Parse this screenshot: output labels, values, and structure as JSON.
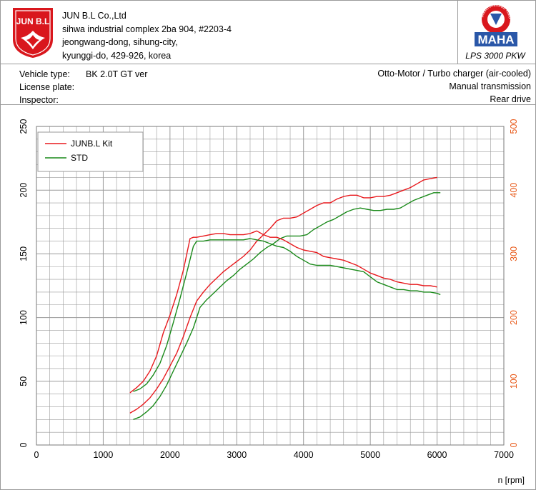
{
  "company": {
    "logo_text": "JUN B.L",
    "name": "JUN B.L Co.,Ltd",
    "address_lines": [
      "sihwa industrial complex 2ba 904, #2203-4",
      "jeongwang-dong, sihung-city,",
      "kyunggi-do, 429-926, korea"
    ]
  },
  "equipment": {
    "brand": "MAHA",
    "ring_text": "Maschinenbau Haldenwang",
    "model": "LPS 3000 PKW"
  },
  "vehicle": {
    "type_label": "Vehicle type:",
    "type_value": "BK 2.0T GT ver",
    "plate_label": "License plate:",
    "plate_value": "",
    "inspector_label": "Inspector:",
    "inspector_value": "",
    "engine": "Otto-Motor / Turbo charger (air-cooled)",
    "transmission": "Manual transmission",
    "drive": "Rear drive"
  },
  "colors": {
    "kit": "#e8191d",
    "std": "#1a8a1a",
    "right_axis": "#e85a1a",
    "grid": "#9a9a9a",
    "logo_red": "#d9171d"
  },
  "chart_data": {
    "type": "line",
    "xlabel": "n [rpm]",
    "xlim": [
      0,
      7000
    ],
    "xticks": [
      0,
      1000,
      2000,
      3000,
      4000,
      5000,
      6000,
      7000
    ],
    "ylim_left": [
      0,
      250
    ],
    "yticks_left": [
      0,
      50,
      100,
      150,
      200,
      250
    ],
    "ylim_right": [
      0,
      500
    ],
    "yticks_right": [
      0,
      100,
      200,
      300,
      400,
      500
    ],
    "grid": true,
    "legend_position": "top-left",
    "legend": [
      "JUNB.L Kit",
      "STD"
    ],
    "series": [
      {
        "name": "JUNB.L Kit",
        "kind": "power",
        "axis": "left",
        "x": [
          1400,
          1500,
          1600,
          1700,
          1800,
          1900,
          2000,
          2100,
          2200,
          2300,
          2400,
          2500,
          2600,
          2700,
          2800,
          2900,
          3000,
          3100,
          3200,
          3300,
          3400,
          3500,
          3600,
          3700,
          3800,
          3900,
          4000,
          4100,
          4200,
          4300,
          4400,
          4500,
          4600,
          4700,
          4800,
          4900,
          5000,
          5100,
          5200,
          5300,
          5400,
          5500,
          5600,
          5700,
          5800,
          5900,
          6000
        ],
        "values": [
          25,
          28,
          32,
          37,
          44,
          52,
          62,
          72,
          85,
          100,
          113,
          120,
          126,
          131,
          136,
          140,
          144,
          148,
          153,
          160,
          165,
          170,
          176,
          178,
          178,
          179,
          182,
          185,
          188,
          190,
          190,
          193,
          195,
          196,
          196,
          194,
          194,
          195,
          195,
          196,
          198,
          200,
          202,
          205,
          208,
          209,
          210
        ]
      },
      {
        "name": "STD",
        "kind": "power",
        "axis": "left",
        "x": [
          1450,
          1550,
          1650,
          1750,
          1850,
          1950,
          2050,
          2150,
          2250,
          2350,
          2450,
          2550,
          2650,
          2750,
          2850,
          2950,
          3050,
          3150,
          3250,
          3350,
          3450,
          3550,
          3650,
          3750,
          3850,
          3950,
          4050,
          4150,
          4250,
          4350,
          4450,
          4550,
          4650,
          4750,
          4850,
          4950,
          5050,
          5150,
          5250,
          5350,
          5450,
          5550,
          5650,
          5750,
          5850,
          5950,
          6050
        ],
        "values": [
          20,
          22,
          26,
          31,
          38,
          47,
          58,
          69,
          80,
          92,
          108,
          114,
          119,
          124,
          129,
          133,
          138,
          142,
          146,
          151,
          155,
          158,
          162,
          164,
          164,
          164,
          165,
          169,
          172,
          175,
          177,
          180,
          183,
          185,
          186,
          185,
          184,
          184,
          185,
          185,
          186,
          189,
          192,
          194,
          196,
          198,
          198
        ]
      },
      {
        "name": "JUNB.L Kit",
        "kind": "torque",
        "axis": "left",
        "x": [
          1400,
          1500,
          1600,
          1700,
          1800,
          1900,
          2000,
          2100,
          2200,
          2300,
          2350,
          2400,
          2500,
          2600,
          2700,
          2800,
          2900,
          3000,
          3100,
          3200,
          3300,
          3400,
          3500,
          3600,
          3700,
          3800,
          3900,
          4000,
          4100,
          4200,
          4300,
          4400,
          4500,
          4600,
          4700,
          4800,
          4900,
          5000,
          5100,
          5200,
          5300,
          5400,
          5500,
          5600,
          5700,
          5800,
          5900,
          6000
        ],
        "values": [
          41,
          45,
          50,
          58,
          70,
          88,
          102,
          118,
          137,
          162,
          163,
          163,
          164,
          165,
          166,
          166,
          165,
          165,
          165,
          166,
          168,
          165,
          163,
          163,
          161,
          158,
          155,
          153,
          152,
          151,
          148,
          147,
          146,
          145,
          143,
          141,
          138,
          135,
          133,
          131,
          130,
          128,
          127,
          126,
          126,
          125,
          125,
          124
        ]
      },
      {
        "name": "STD",
        "kind": "torque",
        "axis": "left",
        "x": [
          1450,
          1550,
          1650,
          1750,
          1850,
          1950,
          2050,
          2150,
          2250,
          2350,
          2400,
          2500,
          2600,
          2700,
          2800,
          2900,
          3000,
          3100,
          3200,
          3300,
          3400,
          3500,
          3600,
          3700,
          3800,
          3900,
          4000,
          4100,
          4200,
          4300,
          4400,
          4500,
          4600,
          4700,
          4800,
          4900,
          5000,
          5100,
          5200,
          5300,
          5400,
          5500,
          5600,
          5700,
          5800,
          5900,
          6000,
          6050
        ],
        "values": [
          42,
          44,
          48,
          55,
          64,
          78,
          96,
          115,
          135,
          156,
          160,
          160,
          161,
          161,
          161,
          161,
          161,
          161,
          162,
          161,
          160,
          158,
          156,
          155,
          152,
          148,
          145,
          142,
          141,
          141,
          141,
          140,
          139,
          138,
          137,
          136,
          132,
          128,
          126,
          124,
          122,
          122,
          121,
          121,
          120,
          120,
          119,
          118
        ]
      }
    ]
  }
}
